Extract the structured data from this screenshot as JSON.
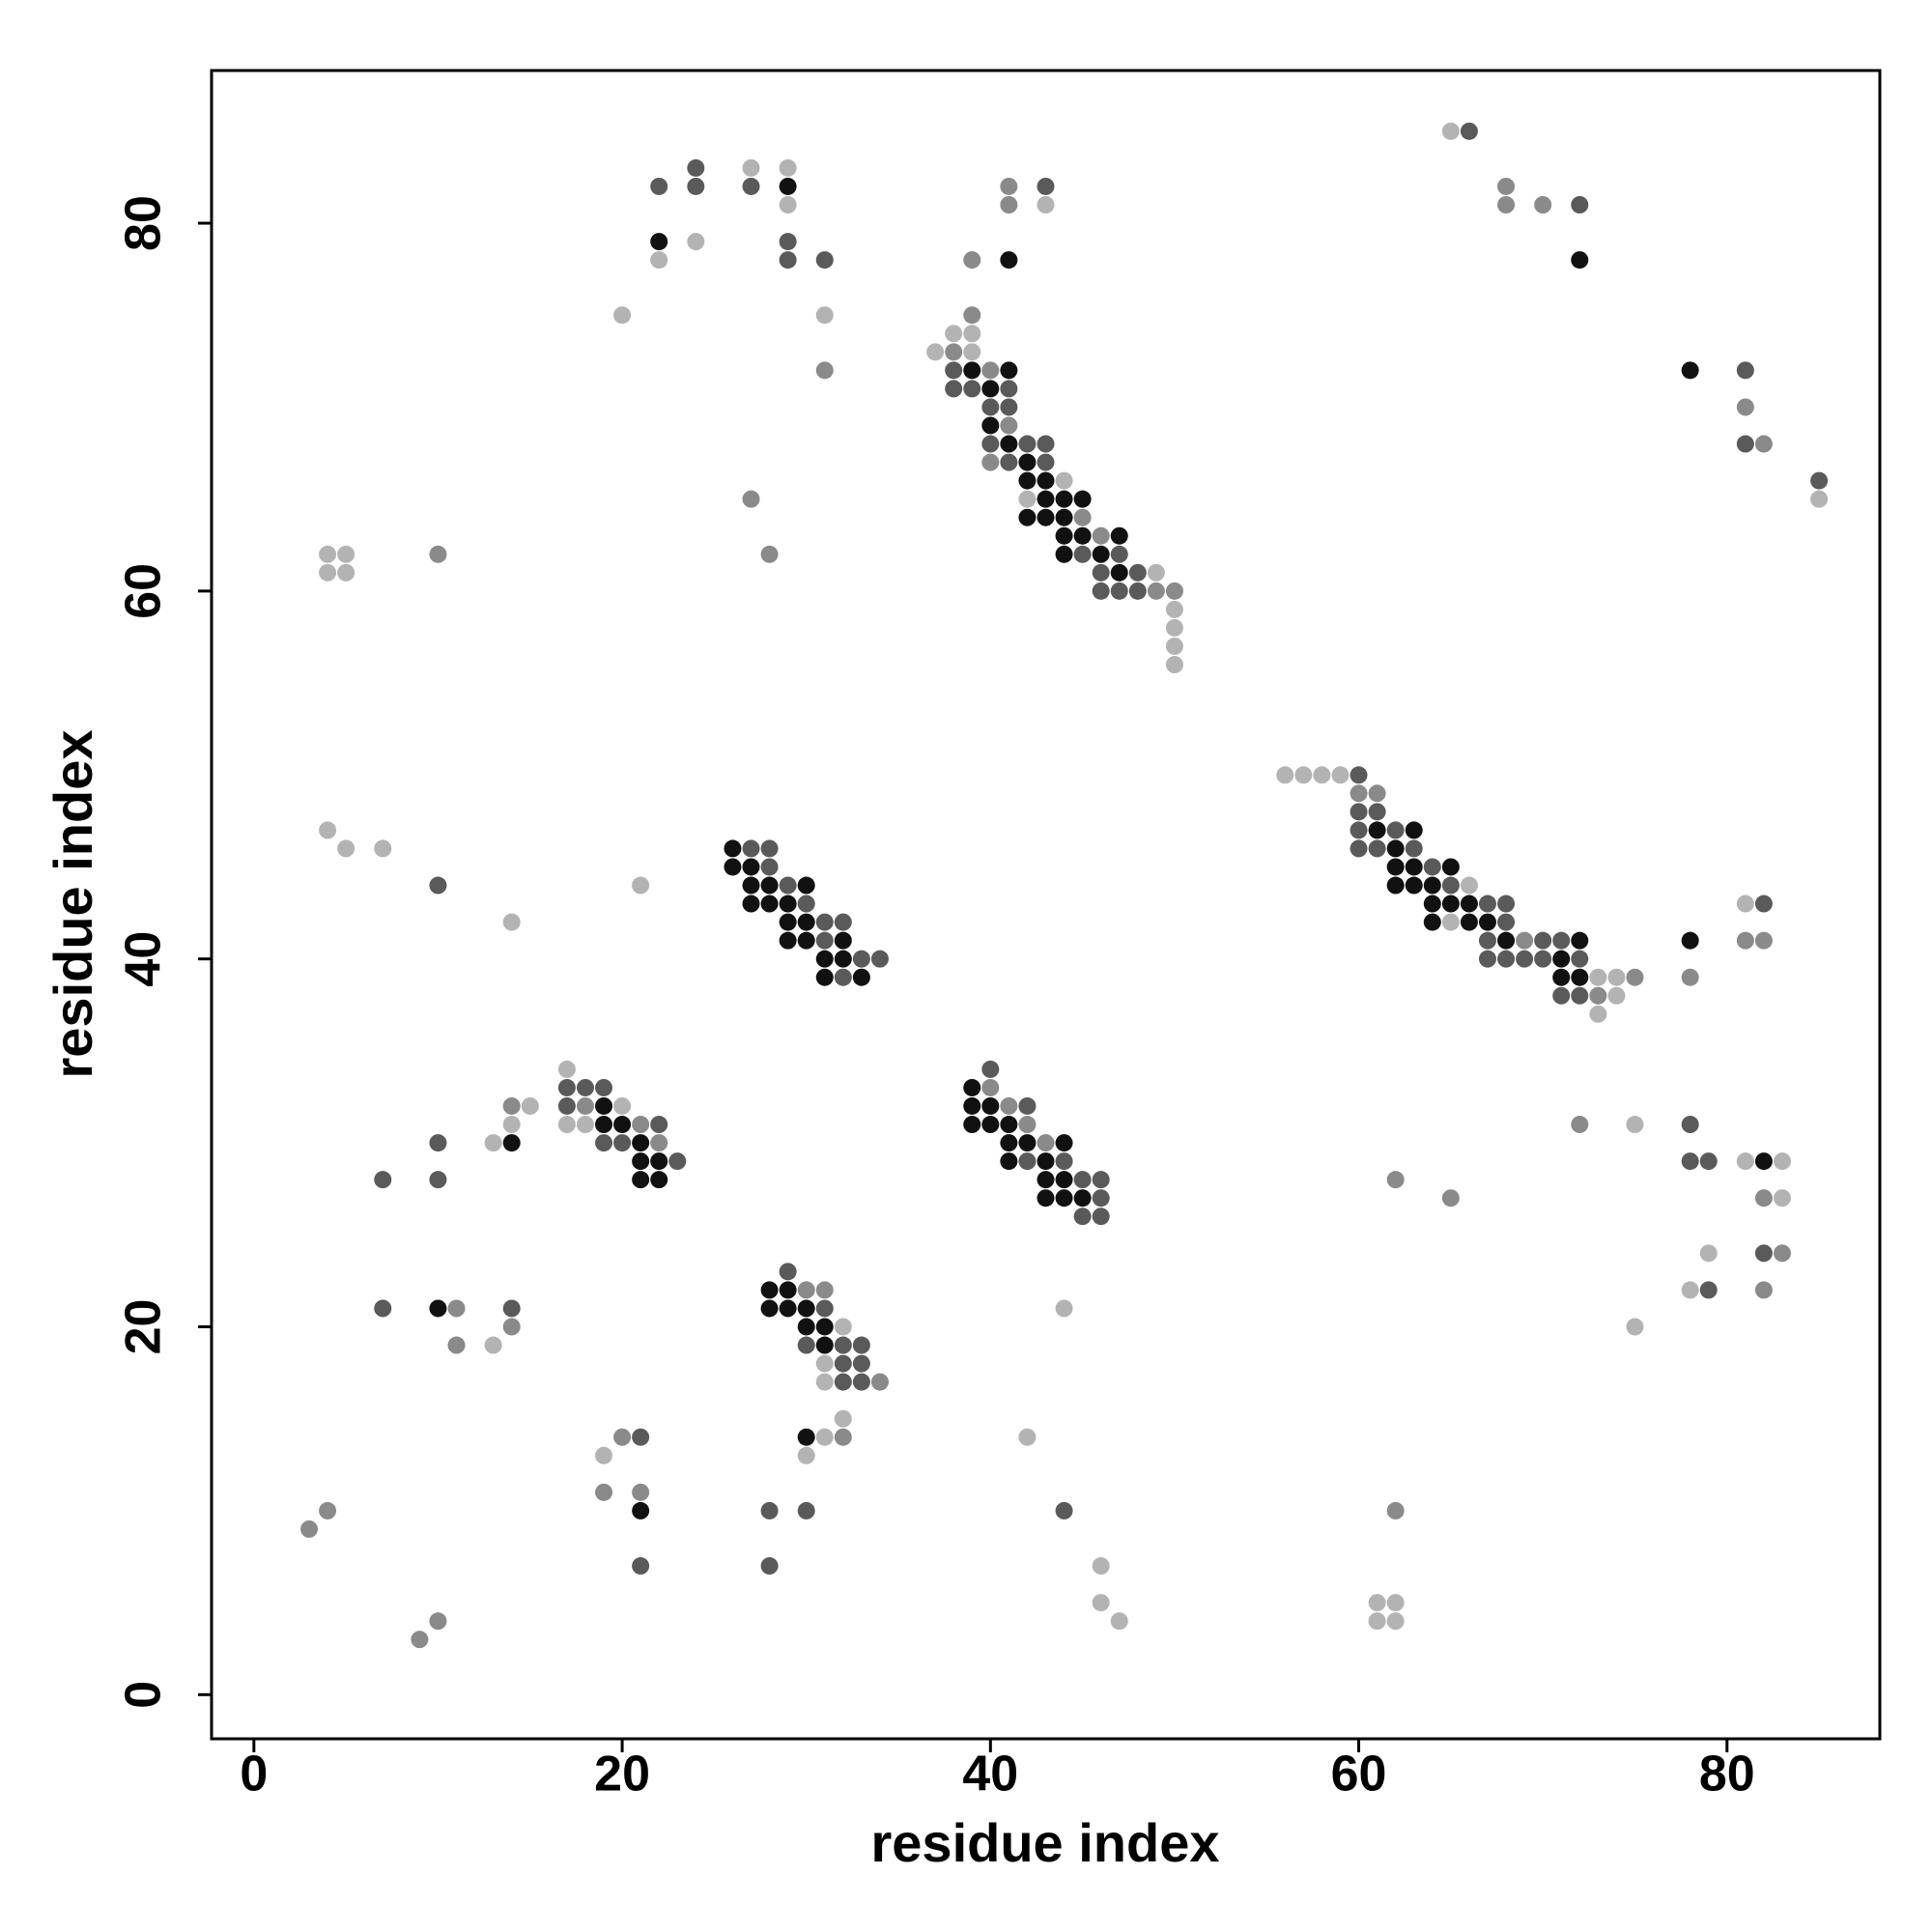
{
  "chart_data": {
    "type": "scatter",
    "x_label": "residue index",
    "y_label": "residue index",
    "xlim": [
      -2.3,
      88.3
    ],
    "ylim": [
      -2.4,
      88.3
    ],
    "xticks": [
      0,
      20,
      40,
      60,
      80
    ],
    "yticks": [
      0,
      20,
      40,
      60,
      80
    ],
    "series": [
      {
        "color": "#b3b3b3",
        "x": [
          65,
          27,
          29,
          29,
          43,
          24,
          22,
          20,
          31,
          38,
          39,
          37,
          39,
          44,
          42,
          85,
          4,
          5,
          4,
          5,
          49,
          50,
          50,
          50,
          50,
          56,
          57,
          58,
          59,
          4,
          5,
          7,
          21,
          66,
          81,
          14,
          65,
          73,
          74,
          74,
          73,
          17,
          15,
          20,
          14,
          17,
          18,
          75,
          13,
          81,
          83,
          83,
          79,
          78,
          44,
          32,
          75,
          13,
          31,
          31,
          32,
          31,
          42,
          19,
          30,
          46,
          46,
          61,
          62,
          47,
          61,
          62
        ],
        "y": [
          85,
          83,
          83,
          81,
          81,
          79,
          78,
          75,
          75,
          74,
          74,
          73,
          73,
          66,
          65,
          65,
          62,
          62,
          61,
          61,
          61,
          59,
          58,
          57,
          56,
          50,
          50,
          50,
          50,
          47,
          46,
          46,
          44,
          44,
          43,
          42,
          42,
          39,
          39,
          38,
          37,
          34,
          32,
          32,
          31,
          31,
          31,
          31,
          30,
          29,
          29,
          27,
          24,
          22,
          21,
          20,
          20,
          19,
          18,
          17,
          15,
          14,
          14,
          13,
          13,
          7,
          5,
          5,
          5,
          4,
          4,
          4
        ]
      },
      {
        "color": "#8a8a8a",
        "x": [
          68,
          41,
          41,
          68,
          70,
          39,
          39,
          38,
          31,
          40,
          81,
          41,
          82,
          40,
          27,
          45,
          46,
          10,
          28,
          49,
          50,
          60,
          61,
          69,
          81,
          82,
          78,
          75,
          73,
          40,
          14,
          18,
          41,
          21,
          42,
          72,
          22,
          43,
          62,
          65,
          82,
          83,
          30,
          31,
          82,
          11,
          14,
          11,
          32,
          20,
          19,
          21,
          4,
          62,
          3,
          10,
          9,
          34
        ],
        "y": [
          82,
          82,
          81,
          81,
          81,
          78,
          75,
          73,
          72,
          72,
          70,
          69,
          68,
          67,
          65,
          64,
          63,
          62,
          62,
          60,
          60,
          49,
          49,
          41,
          41,
          41,
          39,
          39,
          38,
          33,
          32,
          32,
          32,
          31,
          31,
          31,
          30,
          30,
          28,
          27,
          27,
          24,
          22,
          22,
          22,
          21,
          20,
          19,
          14,
          14,
          11,
          11,
          10,
          10,
          9,
          4,
          3,
          17
        ]
      },
      {
        "color": "#5a5a5a",
        "x": [
          66,
          24,
          22,
          24,
          27,
          43,
          72,
          29,
          29,
          31,
          38,
          81,
          38,
          39,
          41,
          40,
          41,
          81,
          40,
          42,
          43,
          41,
          43,
          85,
          47,
          45,
          46,
          48,
          46,
          47,
          48,
          60,
          60,
          61,
          60,
          62,
          27,
          28,
          60,
          61,
          63,
          28,
          64,
          10,
          29,
          65,
          30,
          67,
          68,
          82,
          31,
          32,
          68,
          31,
          67,
          70,
          71,
          33,
          34,
          67,
          68,
          69,
          70,
          72,
          32,
          71,
          72,
          17,
          18,
          19,
          17,
          42,
          22,
          78,
          10,
          19,
          20,
          23,
          42,
          44,
          78,
          79,
          7,
          10,
          45,
          46,
          46,
          45,
          46,
          82,
          29,
          79,
          7,
          14,
          31,
          30,
          32,
          33,
          32,
          33,
          32,
          33,
          21,
          28,
          30,
          44,
          21,
          28,
          40
        ],
        "y": [
          85,
          83,
          82,
          82,
          82,
          82,
          81,
          79,
          78,
          78,
          72,
          72,
          71,
          71,
          71,
          70,
          70,
          68,
          68,
          68,
          68,
          67,
          67,
          66,
          62,
          62,
          61,
          61,
          60,
          60,
          60,
          50,
          48,
          48,
          47,
          47,
          46,
          46,
          46,
          46,
          46,
          45,
          45,
          44,
          44,
          44,
          43,
          43,
          43,
          43,
          42,
          42,
          42,
          41,
          41,
          41,
          41,
          40,
          40,
          40,
          40,
          40,
          40,
          40,
          39,
          38,
          38,
          33,
          33,
          33,
          32,
          32,
          31,
          31,
          30,
          30,
          30,
          29,
          29,
          29,
          29,
          29,
          28,
          28,
          28,
          28,
          27,
          26,
          26,
          24,
          23,
          22,
          21,
          21,
          21,
          19,
          19,
          19,
          18,
          18,
          17,
          17,
          14,
          10,
          10,
          10,
          7,
          7,
          34
        ]
      },
      {
        "color": "#111111",
        "x": [
          29,
          22,
          41,
          72,
          39,
          41,
          78,
          40,
          40,
          41,
          42,
          42,
          43,
          43,
          44,
          45,
          42,
          43,
          44,
          44,
          45,
          47,
          44,
          46,
          47,
          61,
          63,
          26,
          62,
          26,
          27,
          62,
          63,
          65,
          27,
          28,
          30,
          62,
          63,
          64,
          27,
          28,
          29,
          64,
          65,
          66,
          29,
          30,
          64,
          66,
          67,
          29,
          30,
          32,
          68,
          72,
          78,
          31,
          32,
          71,
          31,
          33,
          71,
          72,
          39,
          19,
          39,
          40,
          19,
          20,
          39,
          40,
          41,
          14,
          21,
          41,
          42,
          44,
          21,
          22,
          41,
          43,
          82,
          21,
          22,
          43,
          44,
          43,
          44,
          45,
          28,
          29,
          10,
          28,
          29,
          30,
          30,
          31,
          31,
          30,
          21
        ],
        "y": [
          82,
          79,
          78,
          78,
          72,
          72,
          72,
          71,
          69,
          68,
          67,
          66,
          66,
          65,
          65,
          65,
          64,
          64,
          64,
          63,
          63,
          63,
          62,
          62,
          61,
          47,
          47,
          46,
          46,
          45,
          45,
          45,
          45,
          45,
          44,
          44,
          44,
          44,
          44,
          44,
          43,
          43,
          43,
          43,
          43,
          43,
          42,
          42,
          42,
          42,
          42,
          41,
          41,
          41,
          41,
          41,
          41,
          40,
          40,
          40,
          39,
          39,
          39,
          39,
          33,
          32,
          32,
          32,
          31,
          31,
          31,
          31,
          31,
          30,
          30,
          30,
          30,
          30,
          29,
          29,
          29,
          29,
          29,
          28,
          28,
          28,
          28,
          27,
          27,
          27,
          22,
          22,
          21,
          21,
          21,
          21,
          20,
          20,
          19,
          14,
          10
        ]
      }
    ]
  }
}
